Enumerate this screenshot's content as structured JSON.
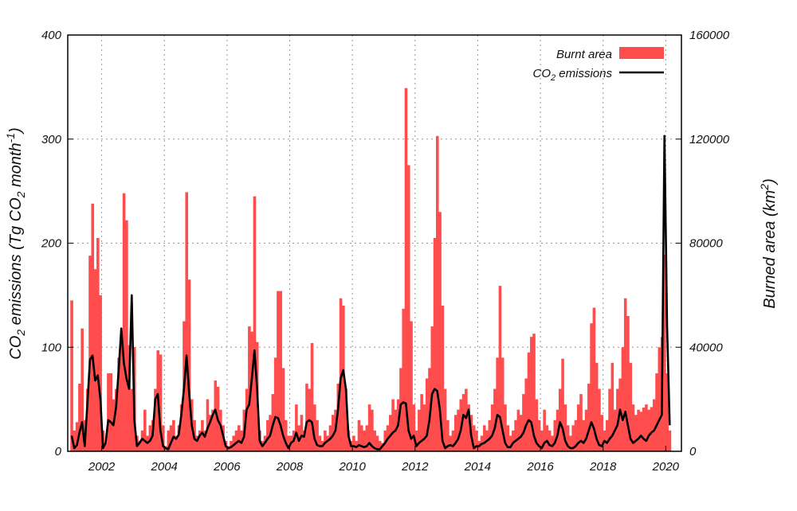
{
  "chart_data": {
    "type": "bar+line",
    "title": "",
    "xlabel": "",
    "ylabel_left": "CO2 emissions (Tg CO2 month-1)",
    "ylabel_left_parts": {
      "a": "CO",
      "sub1": "2",
      "b": " emissions (Tg CO",
      "sub2": "2",
      "c": " month",
      "sup": "-1",
      "d": ")"
    },
    "ylabel_right": "Burned area (km2)",
    "ylabel_right_parts": {
      "a": "Burned area (km",
      "sup": "2",
      "b": ")"
    },
    "xlim": [
      "2000-12",
      "2020-07"
    ],
    "ylim_left": [
      0,
      400
    ],
    "ylim_right": [
      0,
      160000
    ],
    "x_ticks": [
      "2002",
      "2004",
      "2006",
      "2008",
      "2010",
      "2012",
      "2014",
      "2016",
      "2018",
      "2020"
    ],
    "y_ticks_left": [
      "0",
      "100",
      "200",
      "300",
      "400"
    ],
    "y_ticks_right": [
      "0",
      "40000",
      "80000",
      "120000",
      "160000"
    ],
    "grid": true,
    "legend_position": "top-right",
    "colors": {
      "burnt_area": "#ff4d4d",
      "co2": "#000000"
    },
    "series": [
      {
        "name": "Burnt area",
        "type": "bar",
        "axis": "right",
        "unit": "km2"
      },
      {
        "name": "CO2 emissions",
        "legend_parts": {
          "a": "CO",
          "sub": "2",
          "b": " emissions"
        },
        "type": "line",
        "axis": "left",
        "unit": "Tg CO2 month-1"
      }
    ],
    "monthly": [
      {
        "year": 2001,
        "burnt_area": [
          58000,
          8000,
          11200,
          26000,
          47200,
          12000,
          24000,
          75200,
          95200,
          70000,
          82000,
          60000
        ],
        "co2": [
          15,
          3,
          6,
          18,
          28,
          5,
          45,
          88,
          92,
          68,
          73,
          50
        ]
      },
      {
        "year": 2002,
        "burnt_area": [
          8000,
          3200,
          30000,
          30000,
          20000,
          24000,
          36000,
          42000,
          99200,
          88800,
          40800,
          24000
        ],
        "co2": [
          3,
          8,
          30,
          28,
          25,
          42,
          78,
          118,
          85,
          70,
          60,
          150
        ]
      },
      {
        "year": 2003,
        "burnt_area": [
          40000,
          6000,
          4000,
          8000,
          16000,
          6000,
          10000,
          12000,
          24000,
          38800,
          37200,
          10000
        ],
        "co2": [
          30,
          5,
          8,
          12,
          10,
          8,
          10,
          15,
          50,
          55,
          20,
          5
        ]
      },
      {
        "year": 2004,
        "burnt_area": [
          2000,
          8000,
          10000,
          12000,
          6000,
          10000,
          18000,
          50000,
          99600,
          66000,
          20000,
          12000
        ],
        "co2": [
          3,
          2,
          8,
          14,
          12,
          16,
          35,
          60,
          92,
          55,
          25,
          12
        ]
      },
      {
        "year": 2005,
        "burnt_area": [
          6000,
          8000,
          12000,
          8000,
          20000,
          14000,
          16000,
          27200,
          24800,
          16000,
          10000,
          4000
        ],
        "co2": [
          10,
          15,
          18,
          14,
          22,
          28,
          35,
          40,
          30,
          25,
          15,
          5
        ]
      },
      {
        "year": 2006,
        "burnt_area": [
          2000,
          4000,
          6000,
          8000,
          10000,
          8000,
          16000,
          24000,
          48000,
          46000,
          98000,
          42000
        ],
        "co2": [
          3,
          4,
          6,
          8,
          10,
          8,
          14,
          40,
          45,
          70,
          97,
          60
        ]
      },
      {
        "year": 2007,
        "burnt_area": [
          8000,
          4000,
          6000,
          12000,
          14000,
          22000,
          36000,
          61600,
          61600,
          32000,
          12000,
          6000
        ],
        "co2": [
          10,
          5,
          8,
          12,
          15,
          25,
          33,
          32,
          25,
          15,
          8,
          3
        ]
      },
      {
        "year": 2008,
        "burnt_area": [
          6000,
          8000,
          18000,
          10000,
          14000,
          8000,
          26000,
          24000,
          41600,
          18000,
          12000,
          6000
        ],
        "co2": [
          8,
          10,
          18,
          10,
          15,
          14,
          28,
          30,
          28,
          12,
          6,
          5
        ]
      },
      {
        "year": 2009,
        "burnt_area": [
          4000,
          8000,
          6000,
          10000,
          14000,
          16000,
          26000,
          58800,
          56000,
          24000,
          8000,
          4000
        ],
        "co2": [
          5,
          8,
          10,
          12,
          15,
          20,
          40,
          70,
          78,
          60,
          15,
          5
        ]
      },
      {
        "year": 2010,
        "burnt_area": [
          6000,
          4000,
          12000,
          10000,
          8000,
          10000,
          18000,
          16000,
          8000,
          6000,
          4000,
          3200
        ],
        "co2": [
          5,
          4,
          6,
          5,
          4,
          5,
          8,
          5,
          3,
          2,
          2,
          5
        ]
      },
      {
        "year": 2011,
        "burnt_area": [
          8000,
          10000,
          14000,
          20000,
          16000,
          20000,
          32000,
          54800,
          139600,
          110000,
          50000,
          18000
        ],
        "co2": [
          8,
          12,
          15,
          18,
          20,
          25,
          45,
          47,
          46,
          20,
          12,
          15
        ]
      },
      {
        "year": 2012,
        "burnt_area": [
          8000,
          16000,
          22000,
          18000,
          28000,
          32000,
          48000,
          82000,
          121200,
          92000,
          56000,
          24000
        ],
        "co2": [
          5,
          8,
          10,
          12,
          15,
          30,
          55,
          60,
          58,
          40,
          10,
          3
        ]
      },
      {
        "year": 2013,
        "burnt_area": [
          12000,
          6000,
          8000,
          14000,
          16000,
          20000,
          22000,
          24000,
          18000,
          14000,
          10000,
          8000
        ],
        "co2": [
          5,
          6,
          5,
          8,
          12,
          20,
          35,
          32,
          40,
          15,
          3,
          5
        ]
      },
      {
        "year": 2014,
        "burnt_area": [
          4000,
          6000,
          10000,
          8000,
          12000,
          18000,
          24000,
          36000,
          63600,
          36000,
          18000,
          10000
        ],
        "co2": [
          5,
          7,
          8,
          10,
          12,
          15,
          22,
          35,
          33,
          20,
          8,
          4
        ]
      },
      {
        "year": 2015,
        "burnt_area": [
          6000,
          8000,
          12000,
          16000,
          14000,
          22000,
          28000,
          38000,
          44000,
          45200,
          20000,
          12000
        ],
        "co2": [
          4,
          8,
          10,
          12,
          14,
          18,
          25,
          30,
          28,
          15,
          8,
          5
        ]
      },
      {
        "year": 2016,
        "burnt_area": [
          8000,
          16000,
          10000,
          8000,
          6000,
          12000,
          16000,
          24000,
          35600,
          18000,
          10000,
          6000
        ],
        "co2": [
          3,
          8,
          10,
          6,
          5,
          8,
          15,
          28,
          22,
          10,
          5,
          3
        ]
      },
      {
        "year": 2017,
        "burnt_area": [
          10000,
          12000,
          18000,
          22000,
          12000,
          16000,
          26000,
          49200,
          55200,
          34000,
          24000,
          14000
        ],
        "co2": [
          3,
          5,
          8,
          10,
          8,
          12,
          20,
          28,
          22,
          12,
          6,
          5
        ]
      },
      {
        "year": 2018,
        "burnt_area": [
          8000,
          12000,
          24000,
          34000,
          16000,
          24000,
          28000,
          40000,
          58800,
          52000,
          34000,
          18000
        ],
        "co2": [
          10,
          8,
          12,
          15,
          20,
          25,
          40,
          30,
          38,
          25,
          12,
          8
        ]
      },
      {
        "year": 2019,
        "burnt_area": [
          14000,
          16000,
          15200,
          16800,
          18000,
          16000,
          17000,
          20000,
          30000,
          40000,
          44000,
          75600
        ],
        "co2": [
          10,
          12,
          15,
          12,
          10,
          15,
          18,
          20,
          25,
          30,
          35,
          303
        ]
      },
      {
        "year": 2020,
        "burnt_area": [
          30000,
          8000
        ],
        "co2": [
          120,
          25
        ]
      }
    ]
  }
}
